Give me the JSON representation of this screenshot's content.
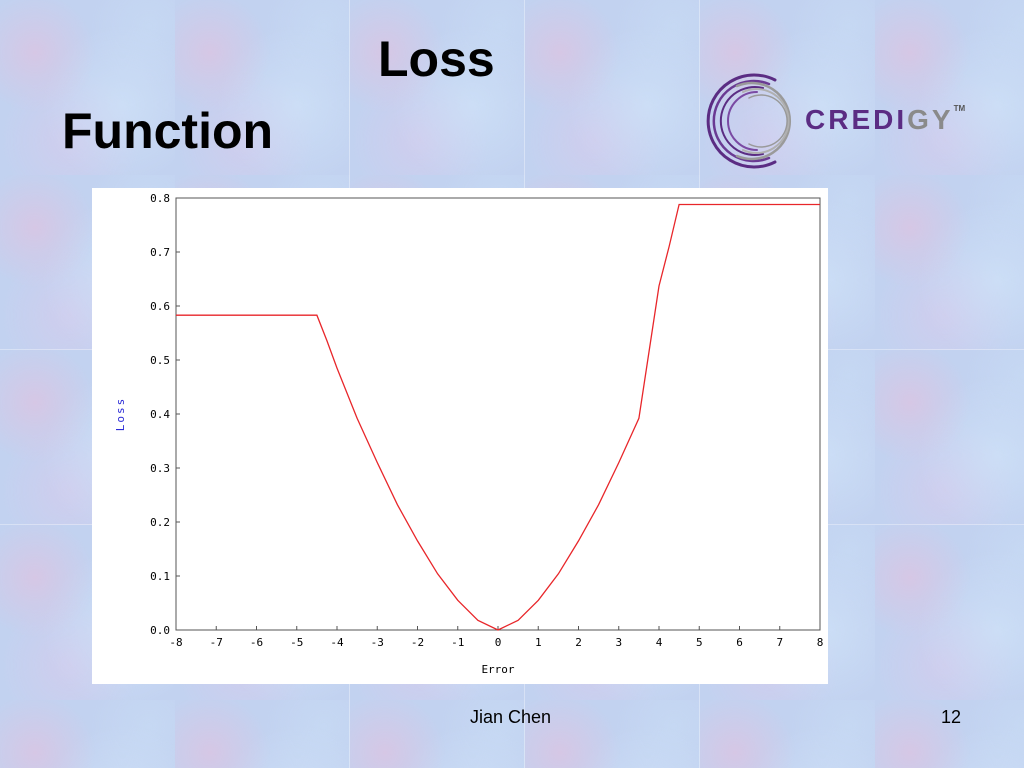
{
  "slide": {
    "title_line1": "Loss",
    "title_line2": "Function",
    "logo_text_a": "CREDI",
    "logo_text_b": "GY",
    "logo_tm": "TM",
    "footer_author": "Jian Chen",
    "footer_page": "12"
  },
  "chart_data": {
    "type": "line",
    "title": "",
    "xlabel": "Error",
    "ylabel": "Loss",
    "xlim": [
      -8,
      8
    ],
    "ylim": [
      0,
      0.8
    ],
    "xticks": [
      "-8",
      "-7",
      "-6",
      "-5",
      "-4",
      "-3",
      "-2",
      "-1",
      "0",
      "1",
      "2",
      "3",
      "4",
      "5",
      "6",
      "7",
      "8"
    ],
    "yticks": [
      "0.0",
      "0.1",
      "0.2",
      "0.3",
      "0.4",
      "0.5",
      "0.6",
      "0.7",
      "0.8"
    ],
    "grid": false,
    "series": [
      {
        "color": "#e8262a",
        "x": [
          -8,
          -7,
          -6,
          -5,
          -4.5,
          -4.25,
          -4,
          -3.5,
          -3,
          -2.5,
          -2,
          -1.5,
          -1,
          -0.5,
          0,
          0.5,
          1,
          1.5,
          2,
          2.5,
          3,
          3.5,
          4,
          4.25,
          4.5,
          5,
          6,
          7,
          8
        ],
        "y": [
          0.583,
          0.583,
          0.583,
          0.583,
          0.583,
          0.536,
          0.485,
          0.392,
          0.31,
          0.232,
          0.165,
          0.104,
          0.055,
          0.018,
          0.0,
          0.018,
          0.055,
          0.104,
          0.165,
          0.232,
          0.31,
          0.392,
          0.637,
          0.71,
          0.788,
          0.788,
          0.788,
          0.788,
          0.788
        ]
      }
    ]
  }
}
